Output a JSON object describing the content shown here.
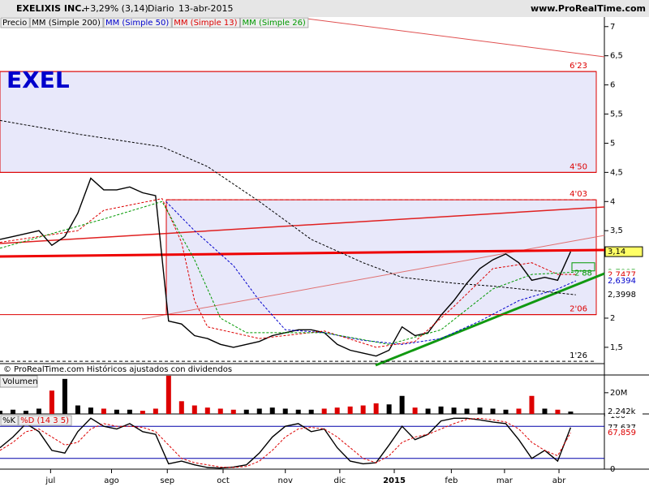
{
  "header": {
    "title": "EXELIXIS INC.",
    "change": "+3,29% (3,14)",
    "period": "Diario",
    "date": "13-abr-2015",
    "site": "www.ProRealTime.com"
  },
  "chart_data": [
    {
      "type": "line",
      "title": "EXEL",
      "subtitle": "© ProRealTime.com  Históricos ajustados con dividendos",
      "xlim": [
        0,
        46.6
      ],
      "xticks": [
        {
          "value": 3.9,
          "label": "jul"
        },
        {
          "value": 8.6,
          "label": "ago"
        },
        {
          "value": 12.9,
          "label": "sep"
        },
        {
          "value": 17.2,
          "label": "oct"
        },
        {
          "value": 22,
          "label": "nov"
        },
        {
          "value": 26.2,
          "label": "dic"
        },
        {
          "value": 30.4,
          "label": "2015"
        },
        {
          "value": 34.8,
          "label": "feb"
        },
        {
          "value": 38.9,
          "label": "mar"
        },
        {
          "value": 43.1,
          "label": "abr"
        }
      ],
      "ylim": [
        1.22,
        7.15
      ],
      "yticks": [
        {
          "value": 1.5,
          "label": "1,5"
        },
        2,
        {
          "value": 3.5,
          "label": "3,5"
        },
        4,
        {
          "value": 4.5,
          "label": "4,5"
        },
        5,
        {
          "value": 5.5,
          "label": "5,5"
        },
        6,
        {
          "value": 6.5,
          "label": "6,5"
        },
        7
      ],
      "series": [
        {
          "name": "Precio",
          "color": "#000000",
          "x": [
            0,
            1,
            2,
            3,
            4,
            5,
            6,
            7,
            8,
            9,
            10,
            11,
            12,
            13,
            14,
            15,
            16,
            17,
            18,
            19,
            20,
            21,
            22,
            23,
            24,
            25,
            26,
            27,
            28,
            29,
            30,
            31,
            32,
            33,
            34,
            35,
            36,
            37,
            38,
            39,
            40,
            41,
            42,
            43,
            44
          ],
          "values": [
            3.35,
            3.4,
            3.45,
            3.5,
            3.25,
            3.4,
            3.8,
            4.4,
            4.2,
            4.2,
            4.25,
            4.15,
            4.1,
            1.95,
            1.9,
            1.7,
            1.65,
            1.55,
            1.5,
            1.55,
            1.6,
            1.7,
            1.75,
            1.8,
            1.8,
            1.75,
            1.55,
            1.45,
            1.4,
            1.35,
            1.45,
            1.85,
            1.7,
            1.75,
            2.05,
            2.3,
            2.6,
            2.85,
            3.0,
            3.1,
            2.95,
            2.65,
            2.7,
            2.65,
            3.14
          ]
        },
        {
          "name": "MM (Simple 200)",
          "color": "#000000",
          "x": [
            0,
            6.2,
            12.5,
            16,
            20,
            24,
            28,
            31,
            35,
            38,
            44.4
          ],
          "values": [
            5.39,
            5.15,
            4.94,
            4.6,
            4.0,
            3.35,
            2.95,
            2.7,
            2.6,
            2.55,
            2.4
          ]
        },
        {
          "name": "MM (Simple 50)",
          "color": "#0000cc",
          "x": [
            12.8,
            15,
            18,
            20,
            22,
            25,
            28,
            31,
            34,
            37,
            40,
            43,
            44.4
          ],
          "values": [
            4.0,
            3.5,
            2.9,
            2.3,
            1.8,
            1.75,
            1.62,
            1.55,
            1.65,
            1.95,
            2.3,
            2.5,
            2.64
          ]
        },
        {
          "name": "MM (Simple 13)",
          "color": "#dd0000",
          "x": [
            0,
            6,
            8,
            12.5,
            14,
            15,
            16,
            20,
            25,
            29,
            32,
            35,
            38,
            41,
            43,
            44.4
          ],
          "values": [
            3.3,
            3.5,
            3.85,
            4.05,
            3.3,
            2.3,
            1.85,
            1.65,
            1.78,
            1.5,
            1.6,
            2.2,
            2.85,
            2.95,
            2.75,
            2.75
          ]
        },
        {
          "name": "MM (Simple 26)",
          "color": "#009900",
          "x": [
            0,
            8,
            12.5,
            15,
            17,
            19,
            25,
            30,
            34,
            38,
            41,
            44.4
          ],
          "values": [
            3.2,
            3.7,
            4.0,
            3.0,
            2.0,
            1.75,
            1.75,
            1.55,
            1.8,
            2.5,
            2.75,
            2.79
          ]
        }
      ],
      "levels": [
        {
          "value": 6.23,
          "label": "6'23",
          "color": "#dd0000"
        },
        {
          "value": 4.5,
          "label": "4'50",
          "color": "#dd0000"
        },
        {
          "value": 4.03,
          "label": "4'03",
          "color": "#dd0000"
        },
        {
          "value": 2.06,
          "label": "2'06",
          "color": "#dd0000"
        },
        {
          "value": 1.26,
          "label": "1'26",
          "color": "#000000"
        }
      ],
      "annotations": [
        {
          "value": 2.88,
          "label": "2'88",
          "color": "#009900"
        }
      ],
      "tags": [
        {
          "value": 3.14,
          "label": "3,14",
          "color": "#ffff66"
        },
        {
          "value": 2.7885,
          "label": "2,7885",
          "color": "#009900"
        },
        {
          "value": 2.7477,
          "label": "2,7477",
          "color": "#dd0000"
        },
        {
          "value": 2.6394,
          "label": "2,6394",
          "color": "#0000cc"
        },
        {
          "value": 2.3998,
          "label": "2,3998",
          "color": "#000000"
        }
      ]
    },
    {
      "type": "bar",
      "title": "Volumen",
      "color": "#000000",
      "ylim": [
        0,
        36.7
      ],
      "yticks": [
        {
          "value": 20,
          "label": "20M"
        }
      ],
      "values": [
        3,
        4,
        3,
        5,
        22,
        33,
        8,
        6,
        5,
        4,
        4,
        3,
        5,
        36,
        12,
        8,
        6,
        5,
        4,
        4,
        5,
        6,
        5,
        4,
        4,
        5,
        6,
        7,
        8,
        10,
        9,
        17,
        6,
        5,
        7,
        6,
        5,
        6,
        5,
        4,
        5,
        17,
        5,
        4,
        2.242
      ],
      "tags": [
        {
          "value": 2.242,
          "label": "2.242k",
          "color": "#000000"
        }
      ]
    },
    {
      "type": "line",
      "ylim": [
        0,
        100
      ],
      "yticks": [
        0,
        100
      ],
      "levels": [
        20,
        80
      ],
      "series": [
        {
          "name": "%K",
          "color": "#000000",
          "values": [
            40,
            60,
            85,
            70,
            35,
            30,
            70,
            95,
            80,
            75,
            85,
            70,
            65,
            10,
            15,
            8,
            3,
            2,
            4,
            8,
            30,
            60,
            80,
            85,
            70,
            75,
            40,
            15,
            10,
            12,
            45,
            80,
            55,
            65,
            90,
            95,
            95,
            92,
            88,
            85,
            55,
            20,
            35,
            15,
            77.637
          ]
        },
        {
          "name": "%D (14 3 5)",
          "color": "#dd0000",
          "values": [
            35,
            50,
            70,
            75,
            60,
            45,
            50,
            75,
            85,
            80,
            80,
            78,
            70,
            45,
            20,
            12,
            8,
            4,
            3,
            5,
            15,
            35,
            60,
            75,
            78,
            75,
            60,
            40,
            20,
            12,
            25,
            50,
            60,
            65,
            75,
            85,
            93,
            95,
            92,
            88,
            75,
            50,
            35,
            25,
            67.859
          ]
        }
      ],
      "tags": [
        {
          "value": 77.637,
          "label": "77,637",
          "color": "#000000"
        },
        {
          "value": 67.859,
          "label": "67,859",
          "color": "#dd0000"
        }
      ]
    }
  ]
}
